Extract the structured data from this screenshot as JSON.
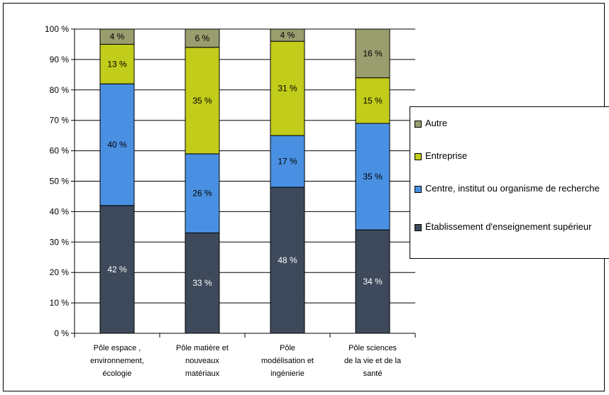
{
  "chart_data": {
    "type": "bar",
    "stacked": true,
    "percent": true,
    "categories": [
      [
        "Pôle espace ,",
        "environnement,",
        "écologie"
      ],
      [
        "Pôle matière et",
        "nouveaux",
        "matériaux"
      ],
      [
        "Pôle",
        "modélisation et",
        "ingénierie"
      ],
      [
        "Pôle sciences",
        "de la vie et de la",
        "santé"
      ]
    ],
    "series": [
      {
        "name": "Établissement d'enseignement supérieur",
        "color": "#3e4a5c",
        "label_color": "#ffffff",
        "values": [
          42,
          33,
          48,
          34
        ]
      },
      {
        "name": "Centre, institut ou organisme de recherche",
        "color": "#4a90e2",
        "label_color": "#000000",
        "values": [
          40,
          26,
          17,
          35
        ]
      },
      {
        "name": "Entreprise",
        "color": "#c2cc1a",
        "label_color": "#000000",
        "values": [
          13,
          35,
          31,
          15
        ]
      },
      {
        "name": "Autre",
        "color": "#9a9d6e",
        "label_color": "#000000",
        "values": [
          4,
          6,
          4,
          16
        ]
      }
    ],
    "data_labels": [
      [
        "42 %",
        "33 %",
        "48 %",
        "34 %"
      ],
      [
        "40 %",
        "26 %",
        "17 %",
        "35 %"
      ],
      [
        "13 %",
        "35 %",
        "31 %",
        "15 %"
      ],
      [
        "4 %",
        "6 %",
        "4 %",
        "16 %"
      ]
    ],
    "yticks": [
      "0 %",
      "10 %",
      "20 %",
      "30 %",
      "40 %",
      "50 %",
      "60 %",
      "70 %",
      "80 %",
      "90 %",
      "100 %"
    ],
    "ylim": [
      0,
      100
    ],
    "grid": true,
    "legend_position": "right",
    "legend": [
      {
        "label": "Autre",
        "color": "#9a9d6e"
      },
      {
        "label": "Entreprise",
        "color": "#c2cc1a"
      },
      {
        "label": "Centre, institut ou organisme de recherche",
        "color": "#4a90e2"
      },
      {
        "label": "Établissement d'enseignement supérieur",
        "color": "#3e4a5c"
      }
    ]
  }
}
